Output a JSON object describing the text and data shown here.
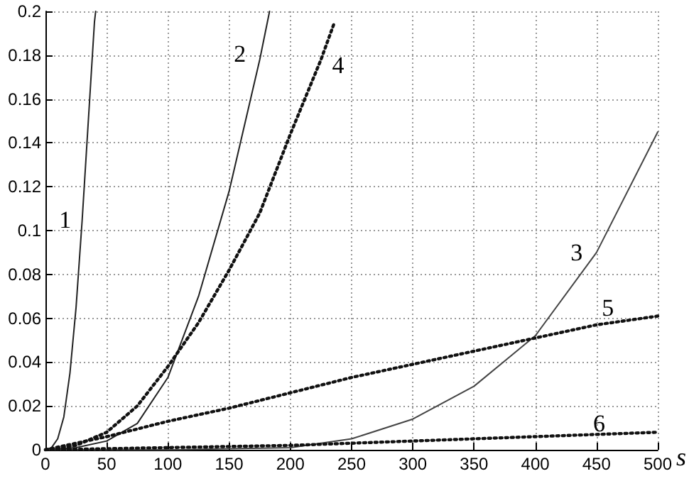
{
  "chart_data": {
    "type": "line",
    "xlabel": "s",
    "xlim": [
      0,
      500
    ],
    "xticks": [
      0,
      50,
      100,
      150,
      200,
      250,
      300,
      350,
      400,
      450,
      500
    ],
    "ylim": [
      0,
      0.2
    ],
    "yticks": [
      0,
      0.02,
      0.04,
      0.06,
      0.08,
      0.1,
      0.12,
      0.14,
      0.16,
      0.18,
      0.2
    ],
    "grid": true,
    "marker": "none",
    "series": [
      {
        "name": "1",
        "color": "#222222",
        "line_style": "solid",
        "x": [
          0,
          5,
          10,
          15,
          20,
          25,
          30,
          35,
          40,
          41
        ],
        "values": [
          0,
          0.001,
          0.005,
          0.015,
          0.035,
          0.065,
          0.105,
          0.15,
          0.195,
          0.2
        ]
      },
      {
        "name": "2",
        "color": "#222222",
        "line_style": "solid",
        "x": [
          0,
          25,
          50,
          75,
          100,
          125,
          150,
          175,
          183
        ],
        "values": [
          0,
          0.001,
          0.004,
          0.012,
          0.033,
          0.07,
          0.118,
          0.178,
          0.2
        ]
      },
      {
        "name": "3",
        "color": "#444444",
        "line_style": "solid",
        "x": [
          0,
          100,
          200,
          250,
          300,
          350,
          400,
          450,
          500
        ],
        "values": [
          0,
          0,
          0.001,
          0.005,
          0.014,
          0.029,
          0.052,
          0.09,
          0.145
        ]
      },
      {
        "name": "4",
        "color": "#111111",
        "line_style": "dotted",
        "x": [
          0,
          25,
          50,
          75,
          100,
          125,
          150,
          175,
          200,
          225,
          236
        ],
        "values": [
          0,
          0.002,
          0.008,
          0.02,
          0.038,
          0.058,
          0.082,
          0.108,
          0.144,
          0.178,
          0.195
        ]
      },
      {
        "name": "5",
        "color": "#111111",
        "line_style": "dotted",
        "x": [
          0,
          50,
          100,
          150,
          200,
          250,
          300,
          350,
          400,
          450,
          500
        ],
        "values": [
          0,
          0.006,
          0.013,
          0.019,
          0.026,
          0.033,
          0.039,
          0.045,
          0.051,
          0.057,
          0.061
        ]
      },
      {
        "name": "6",
        "color": "#111111",
        "line_style": "dotted",
        "x": [
          0,
          100,
          200,
          300,
          400,
          500
        ],
        "values": [
          0,
          0.001,
          0.002,
          0.004,
          0.006,
          0.008
        ]
      }
    ]
  }
}
